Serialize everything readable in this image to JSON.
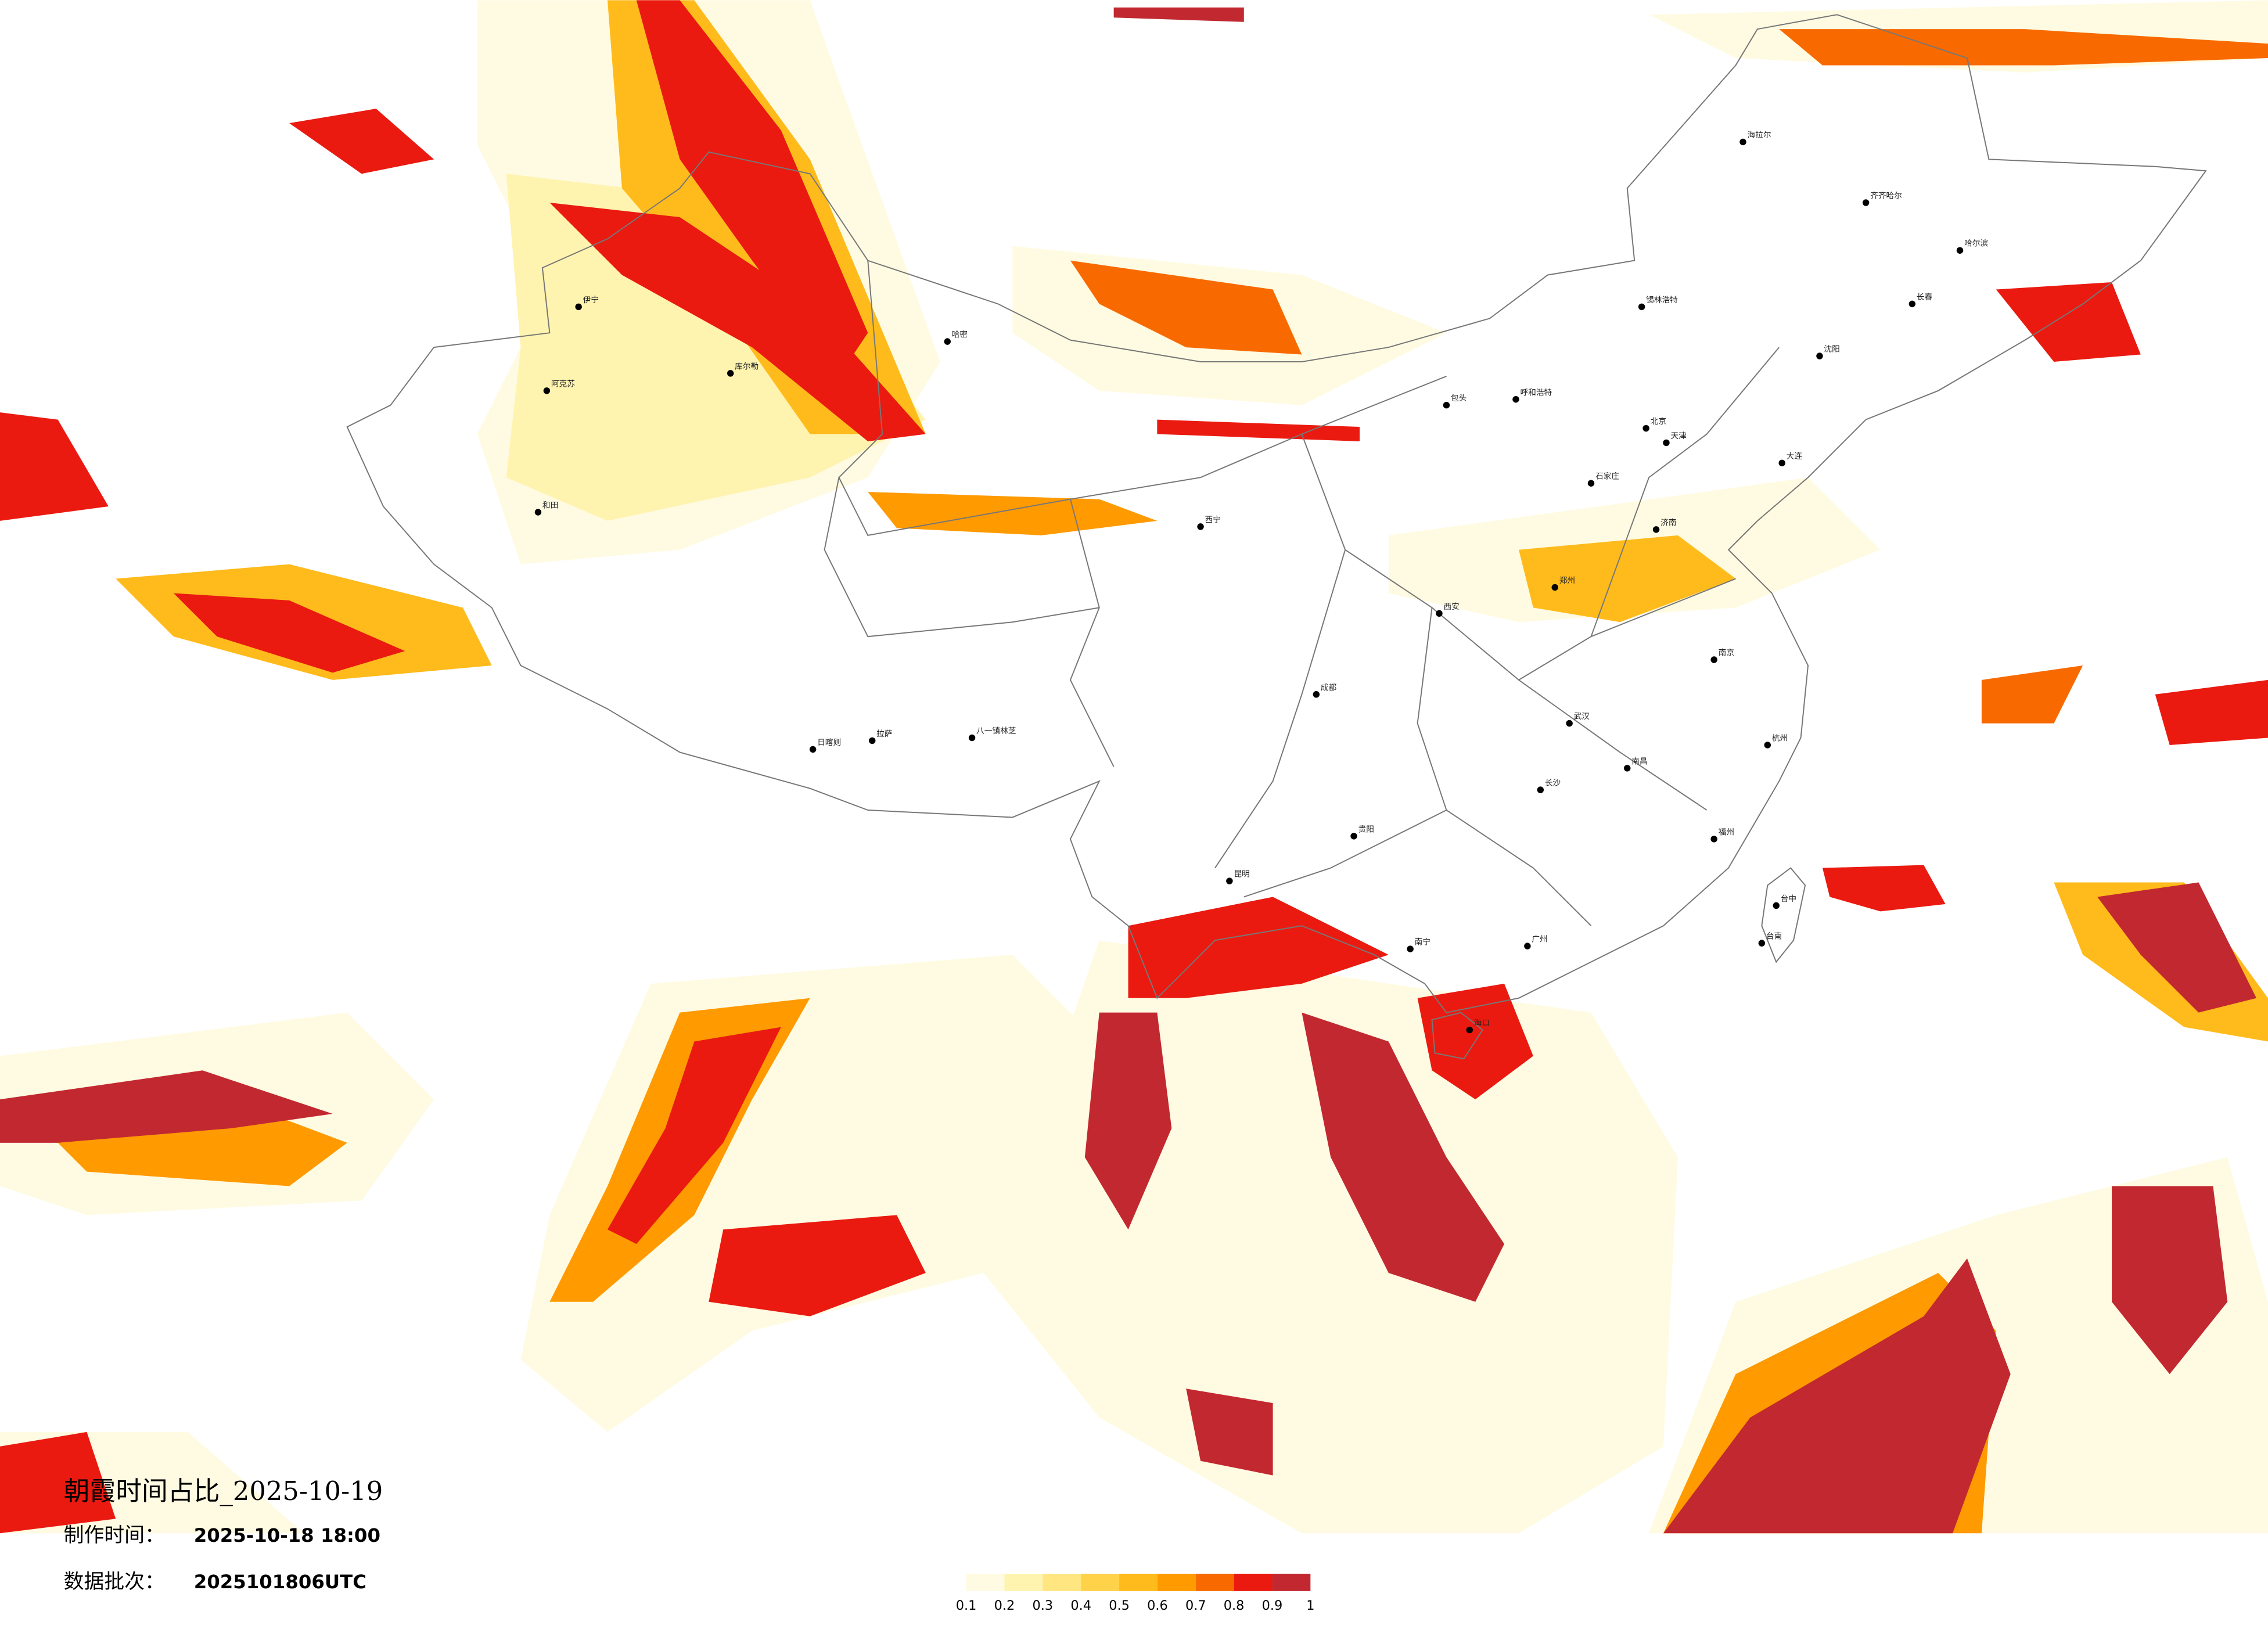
{
  "title": "朝霞时间占比_2025-10-19",
  "issue_time": {
    "label": "制作时间：",
    "value": "2025-10-18 18:00"
  },
  "batch": {
    "label": "数据批次：",
    "value": "2025101806UTC"
  },
  "legend": {
    "colors": [
      "#fffbe2",
      "#fff3b0",
      "#ffe680",
      "#ffd24a",
      "#ffbb1c",
      "#ff9a00",
      "#f86a00",
      "#ea1a10",
      "#c22830"
    ],
    "ticks": [
      0.1,
      0.2,
      0.3,
      0.4,
      0.5,
      0.6,
      0.7,
      0.8,
      0.9,
      1
    ]
  },
  "cities": [
    "海拉尔",
    "齐齐哈尔",
    "哈尔滨",
    "长春",
    "呼和浩特",
    "包头",
    "锡林浩特",
    "北京",
    "石家庄",
    "伊宁",
    "阿克苏",
    "和田",
    "哈密",
    "库尔勒",
    "西宁",
    "拉萨",
    "日喀则",
    "八一镇林芝",
    "成都",
    "昆明",
    "贵阳",
    "南宁",
    "海口",
    "台中",
    "台南",
    "杭州",
    "武汉",
    "西安",
    "郑州",
    "济南",
    "天津",
    "沈阳",
    "大连",
    "长沙",
    "南昌",
    "广州",
    "福州",
    "南京"
  ]
}
